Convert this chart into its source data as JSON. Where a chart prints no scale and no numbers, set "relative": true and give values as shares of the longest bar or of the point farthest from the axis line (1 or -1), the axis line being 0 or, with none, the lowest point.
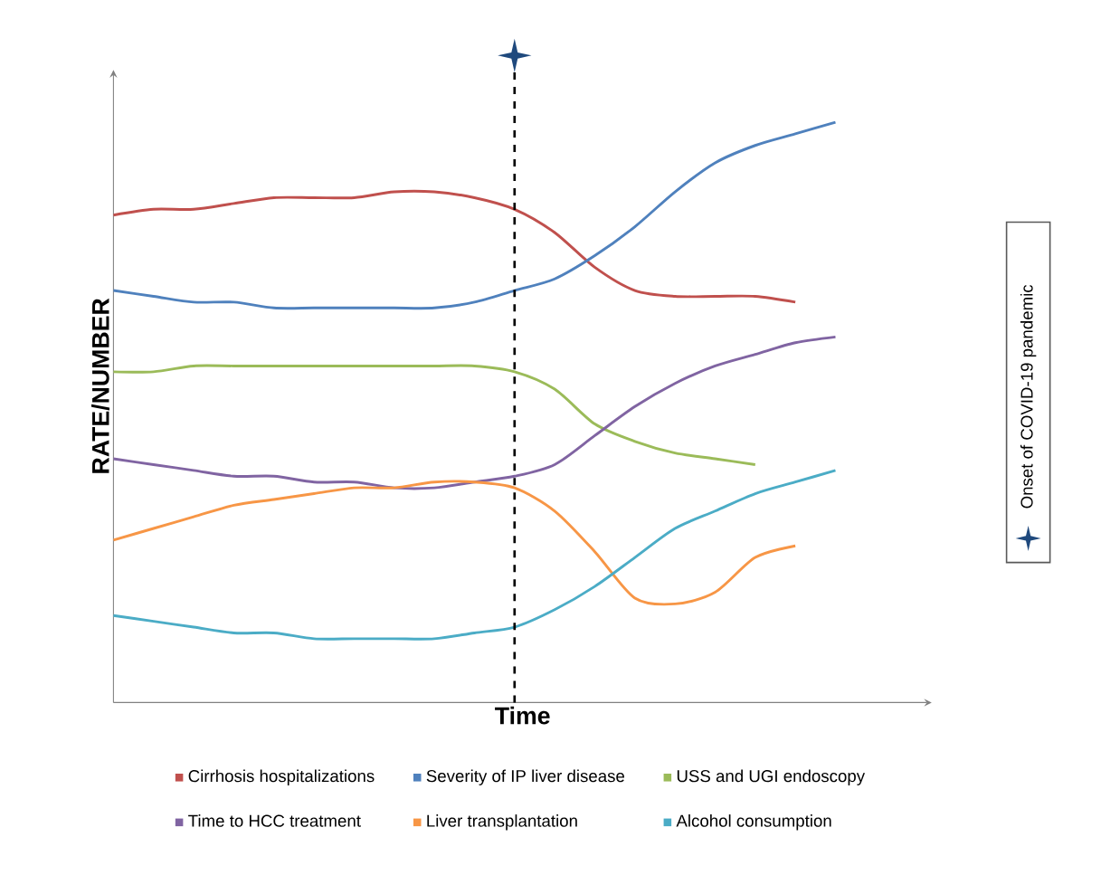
{
  "chart_data": {
    "type": "line",
    "relative": true,
    "xlabel": "Time",
    "ylabel": "RATE/NUMBER",
    "categories": [
      null,
      null,
      null,
      null,
      null,
      null,
      null,
      null,
      null,
      null,
      null,
      null,
      null,
      null,
      null,
      null,
      null,
      null,
      null
    ],
    "series": [
      {
        "name": "Cirrhosis hospitalizations",
        "color": "#c0504d",
        "values": [
          0.84,
          0.85,
          0.85,
          0.86,
          0.87,
          0.87,
          0.87,
          0.88,
          0.88,
          0.87,
          0.85,
          0.81,
          0.75,
          0.71,
          0.7,
          0.7,
          0.7,
          0.69,
          null
        ]
      },
      {
        "name": "Severity of IP liver disease",
        "color": "#4f81bd",
        "values": [
          0.71,
          0.7,
          0.69,
          0.69,
          0.68,
          0.68,
          0.68,
          0.68,
          0.68,
          0.69,
          0.71,
          0.73,
          0.77,
          0.82,
          0.88,
          0.93,
          0.96,
          0.98,
          1.0
        ]
      },
      {
        "name": "USS and UGI endoscopy",
        "color": "#9bbb59",
        "values": [
          0.57,
          0.57,
          0.58,
          0.58,
          0.58,
          0.58,
          0.58,
          0.58,
          0.58,
          0.58,
          0.57,
          0.54,
          0.48,
          0.45,
          0.43,
          0.42,
          0.41,
          null,
          null
        ]
      },
      {
        "name": "Time to HCC treatment",
        "color": "#8064a2",
        "values": [
          0.42,
          0.41,
          0.4,
          0.39,
          0.39,
          0.38,
          0.38,
          0.37,
          0.37,
          0.38,
          0.39,
          0.41,
          0.46,
          0.51,
          0.55,
          0.58,
          0.6,
          0.62,
          0.63
        ]
      },
      {
        "name": "Liver transplantation",
        "color": "#f79646",
        "values": [
          0.28,
          0.3,
          0.32,
          0.34,
          0.35,
          0.36,
          0.37,
          0.37,
          0.38,
          0.38,
          0.37,
          0.33,
          0.26,
          0.18,
          0.17,
          0.19,
          0.25,
          0.27,
          null
        ]
      },
      {
        "name": "Alcohol consumption",
        "color": "#4bacc6",
        "values": [
          0.15,
          0.14,
          0.13,
          0.12,
          0.12,
          0.11,
          0.11,
          0.11,
          0.11,
          0.12,
          0.13,
          0.16,
          0.2,
          0.25,
          0.3,
          0.33,
          0.36,
          0.38,
          0.4
        ]
      }
    ],
    "annotations": [
      "Onset of COVID-19 pandemic"
    ],
    "legend": "bottom",
    "line_style": "solid",
    "marker": "none"
  }
}
